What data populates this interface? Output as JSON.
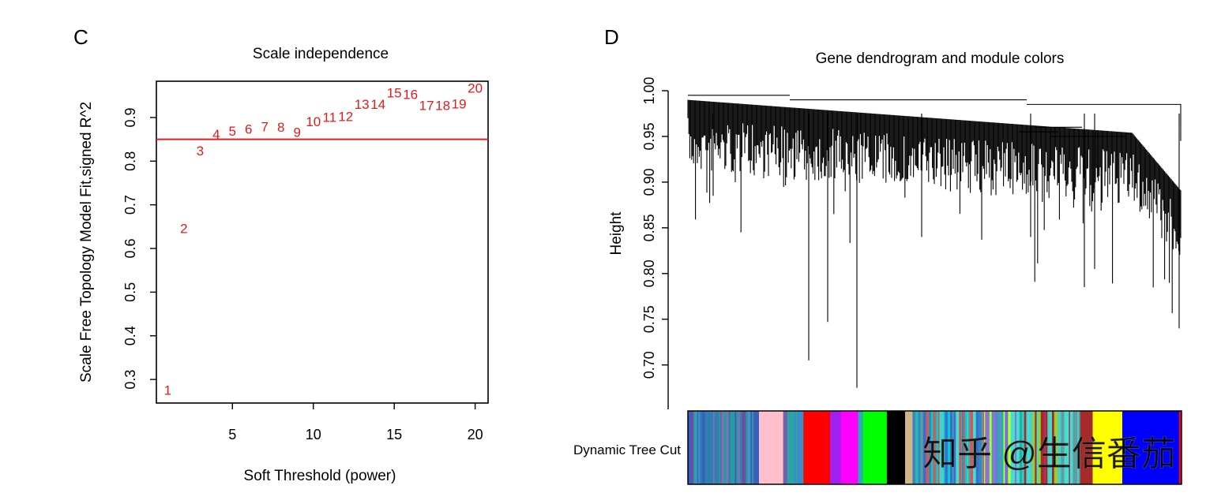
{
  "chart_data": [
    {
      "panel_label": "C",
      "type": "scatter",
      "title": "Scale independence",
      "xlabel": "Soft Threshold (power)",
      "ylabel": "Scale Free Topology Model Fit,signed R^2",
      "xlim": [
        0.3,
        20.8
      ],
      "ylim": [
        0.246,
        0.983
      ],
      "x_ticks": [
        5,
        10,
        15,
        20
      ],
      "y_ticks": [
        0.3,
        0.4,
        0.5,
        0.6,
        0.7,
        0.8,
        0.9
      ],
      "y_tick_labels": [
        "0.3",
        "0.4",
        "0.5",
        "0.6",
        "0.7",
        "0.8",
        "0.9"
      ],
      "x_tick_labels": [
        "5",
        "10",
        "15",
        "20"
      ],
      "h_line": 0.85,
      "line_color": "#e41a1c",
      "points": [
        {
          "x": 1,
          "y": 0.275,
          "label": "1"
        },
        {
          "x": 2,
          "y": 0.645,
          "label": "2"
        },
        {
          "x": 3,
          "y": 0.823,
          "label": "3"
        },
        {
          "x": 4,
          "y": 0.861,
          "label": "4"
        },
        {
          "x": 5,
          "y": 0.868,
          "label": "5"
        },
        {
          "x": 6,
          "y": 0.873,
          "label": "6"
        },
        {
          "x": 7,
          "y": 0.878,
          "label": "7"
        },
        {
          "x": 8,
          "y": 0.877,
          "label": "8"
        },
        {
          "x": 9,
          "y": 0.866,
          "label": "9"
        },
        {
          "x": 10,
          "y": 0.89,
          "label": "10"
        },
        {
          "x": 11,
          "y": 0.9,
          "label": "11"
        },
        {
          "x": 12,
          "y": 0.902,
          "label": "12"
        },
        {
          "x": 13,
          "y": 0.93,
          "label": "13"
        },
        {
          "x": 14,
          "y": 0.93,
          "label": "14"
        },
        {
          "x": 15,
          "y": 0.956,
          "label": "15"
        },
        {
          "x": 16,
          "y": 0.952,
          "label": "16"
        },
        {
          "x": 17,
          "y": 0.927,
          "label": "17"
        },
        {
          "x": 18,
          "y": 0.927,
          "label": "18"
        },
        {
          "x": 19,
          "y": 0.931,
          "label": "19"
        },
        {
          "x": 20,
          "y": 0.967,
          "label": "20"
        }
      ]
    },
    {
      "panel_label": "D",
      "type": "dendrogram",
      "title": "Gene dendrogram and module colors",
      "ylabel": "Height",
      "ylim": [
        0.65,
        1.0
      ],
      "y_ticks": [
        0.7,
        0.75,
        0.8,
        0.85,
        0.9,
        0.95,
        1.0
      ],
      "y_tick_labels": [
        "0.70",
        "0.75",
        "0.80",
        "0.85",
        "0.90",
        "0.95",
        "1.00"
      ],
      "color_bar_label": "Dynamic Tree Cut",
      "module_blocks": [
        {
          "start": 0.0,
          "end": 0.144,
          "color": "mixed",
          "palette": [
            "#3b5fc0",
            "#6b4fa0",
            "#2a9a9a",
            "#4a90d9",
            "#8a6bbf",
            "#2f7fb0"
          ]
        },
        {
          "start": 0.144,
          "end": 0.193,
          "color": "#ffc0cb"
        },
        {
          "start": 0.193,
          "end": 0.234,
          "color": "mixed",
          "palette": [
            "#4a7fc0",
            "#2aa4a4",
            "#7060b0",
            "#3d8ad0"
          ]
        },
        {
          "start": 0.234,
          "end": 0.288,
          "color": "#ff0000"
        },
        {
          "start": 0.288,
          "end": 0.31,
          "color": "#a020f0"
        },
        {
          "start": 0.31,
          "end": 0.345,
          "color": "#ff00ff"
        },
        {
          "start": 0.345,
          "end": 0.355,
          "color": "mixed",
          "palette": [
            "#4682b4",
            "#20b2aa"
          ]
        },
        {
          "start": 0.355,
          "end": 0.403,
          "color": "#00ff00"
        },
        {
          "start": 0.403,
          "end": 0.44,
          "color": "#000000"
        },
        {
          "start": 0.44,
          "end": 0.455,
          "color": "#d2b48c"
        },
        {
          "start": 0.455,
          "end": 0.6,
          "color": "mixed",
          "palette": [
            "#3a6fd0",
            "#40e0d0",
            "#2e8bc0",
            "#5f9ea0",
            "#cd5c5c",
            "#00ced1",
            "#48d1cc"
          ]
        },
        {
          "start": 0.6,
          "end": 0.68,
          "color": "mixed",
          "palette": [
            "#40e0d0",
            "#7b68ee",
            "#20b2aa",
            "#9370db",
            "#adff2f"
          ]
        },
        {
          "start": 0.68,
          "end": 0.8,
          "color": "mixed",
          "palette": [
            "#40e0d0",
            "#a52a2a",
            "#5f9ea0",
            "#b03060",
            "#48d1cc",
            "#9acd32"
          ]
        },
        {
          "start": 0.8,
          "end": 0.82,
          "color": "#a52a2a"
        },
        {
          "start": 0.82,
          "end": 0.88,
          "color": "#ffff00"
        },
        {
          "start": 0.88,
          "end": 0.995,
          "color": "#0000ff"
        },
        {
          "start": 0.995,
          "end": 1.0,
          "color": "#ff0000"
        }
      ]
    }
  ],
  "watermark": "知乎 @生信番茄"
}
